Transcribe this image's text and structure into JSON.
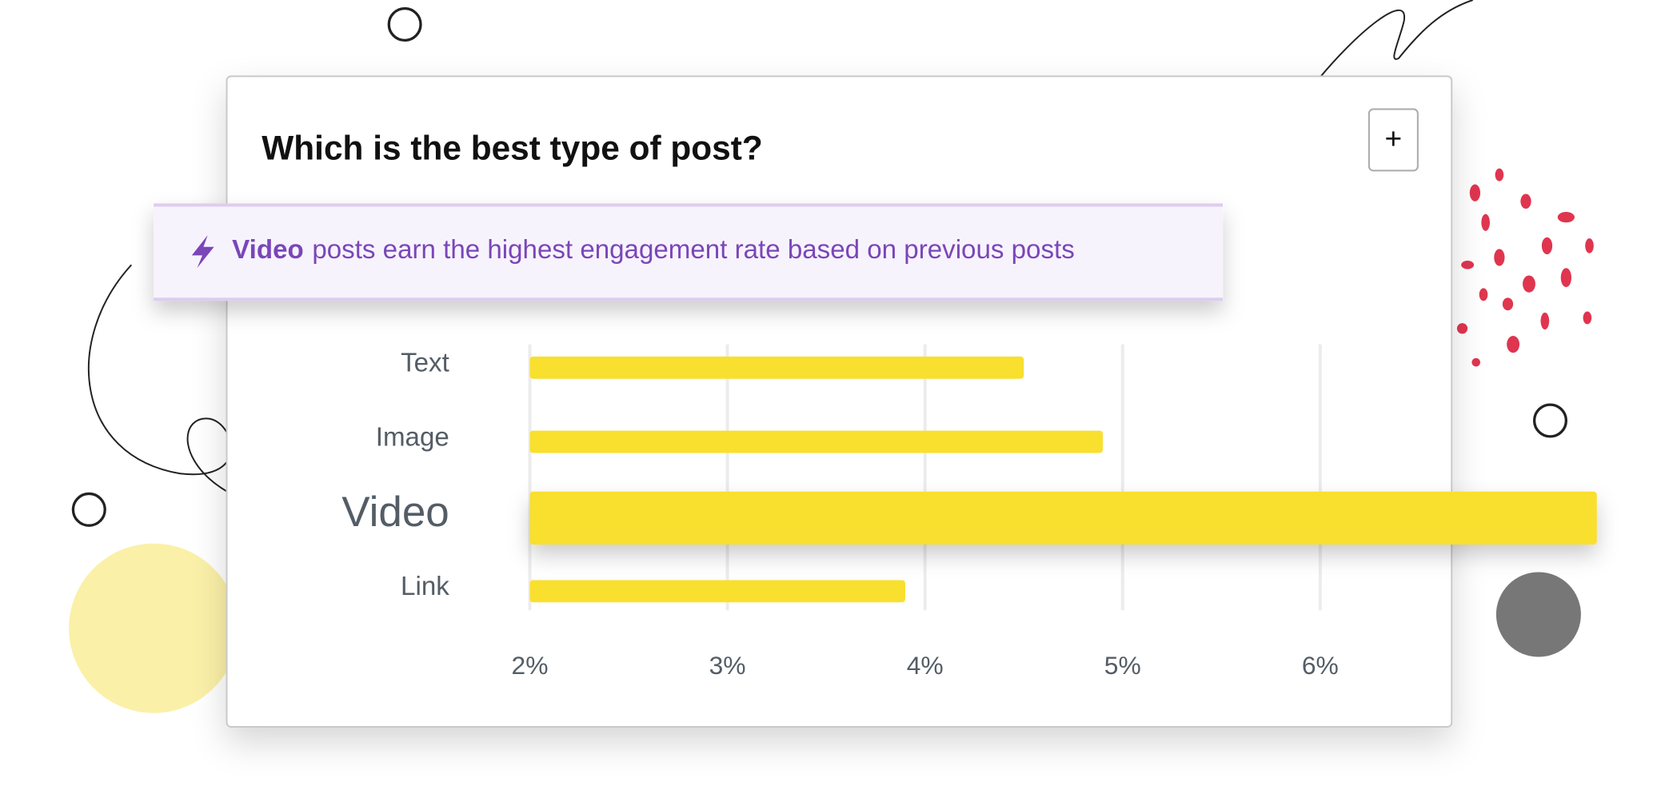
{
  "chart_data": {
    "type": "bar",
    "orientation": "horizontal",
    "title": "Which is the best type of post?",
    "annotation": {
      "highlight": "Video",
      "text": "posts earn the highest engagement rate based on previous posts"
    },
    "categories": [
      "Text",
      "Image",
      "Video",
      "Link"
    ],
    "values": [
      4.5,
      4.9,
      7.4,
      3.9
    ],
    "color": "#f9df2e",
    "xlim": [
      2,
      7.4
    ],
    "xticks": [
      {
        "value": 2,
        "label": "2%"
      },
      {
        "value": 3,
        "label": "3%"
      },
      {
        "value": 4,
        "label": "4%"
      },
      {
        "value": 5,
        "label": "5%"
      },
      {
        "value": 6,
        "label": "6%"
      }
    ],
    "grid": true
  },
  "expand_button": "+"
}
